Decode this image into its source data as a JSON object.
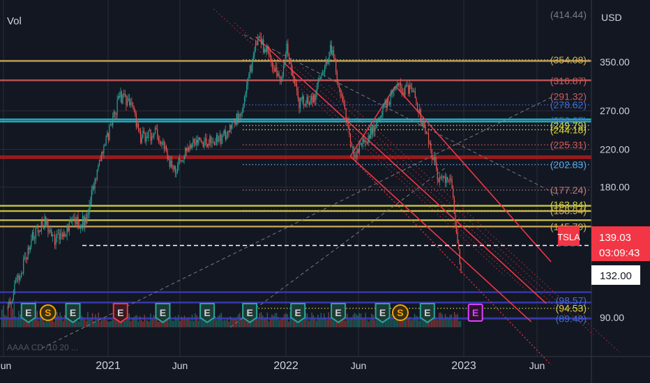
{
  "panel": {
    "vol_label": "Vol",
    "currency": "USD"
  },
  "chart_data": {
    "type": "candlestick",
    "symbol": "TSLA",
    "currency": "USD",
    "ylim": [
      75,
      425
    ],
    "y_scale": "log",
    "y_ticks": [
      {
        "value": 350,
        "label": "350.00"
      },
      {
        "value": 270,
        "label": "270.00"
      },
      {
        "value": 220,
        "label": "220.00"
      },
      {
        "value": 180,
        "label": "180.00"
      },
      {
        "value": 90,
        "label": "90.00"
      }
    ],
    "x_ticks": [
      "Jun",
      "2021",
      "Jun",
      "2022",
      "Jun",
      "2023",
      "Jun"
    ],
    "x_tick_dates": [
      "2020-06-01",
      "2021-01-01",
      "2021-06-01",
      "2022-01-01",
      "2022-06-01",
      "2023-01-01",
      "2023-06-01"
    ],
    "price_path": [
      {
        "date": "2020-06-10",
        "price": 95
      },
      {
        "date": "2020-07-01",
        "price": 110
      },
      {
        "date": "2020-08-01",
        "price": 140
      },
      {
        "date": "2020-08-25",
        "price": 150
      },
      {
        "date": "2020-09-10",
        "price": 135
      },
      {
        "date": "2020-10-01",
        "price": 140
      },
      {
        "date": "2020-10-20",
        "price": 148
      },
      {
        "date": "2020-11-15",
        "price": 150
      },
      {
        "date": "2020-12-15",
        "price": 205
      },
      {
        "date": "2021-01-25",
        "price": 290
      },
      {
        "date": "2021-02-15",
        "price": 285
      },
      {
        "date": "2021-03-10",
        "price": 235
      },
      {
        "date": "2021-04-15",
        "price": 240
      },
      {
        "date": "2021-05-20",
        "price": 195
      },
      {
        "date": "2021-06-25",
        "price": 230
      },
      {
        "date": "2021-08-20",
        "price": 230
      },
      {
        "date": "2021-10-01",
        "price": 265
      },
      {
        "date": "2021-11-04",
        "price": 395
      },
      {
        "date": "2021-11-25",
        "price": 370
      },
      {
        "date": "2021-12-20",
        "price": 310
      },
      {
        "date": "2022-01-03",
        "price": 375
      },
      {
        "date": "2022-01-27",
        "price": 280
      },
      {
        "date": "2022-03-01",
        "price": 290
      },
      {
        "date": "2022-04-04",
        "price": 380
      },
      {
        "date": "2022-05-24",
        "price": 210
      },
      {
        "date": "2022-06-25",
        "price": 240
      },
      {
        "date": "2022-08-15",
        "price": 305
      },
      {
        "date": "2022-09-20",
        "price": 300
      },
      {
        "date": "2022-10-25",
        "price": 220
      },
      {
        "date": "2022-11-10",
        "price": 190
      },
      {
        "date": "2022-12-05",
        "price": 185
      },
      {
        "date": "2022-12-27",
        "price": 115
      }
    ],
    "horizontal_levels": [
      {
        "label": "(414.44)",
        "value": 414.44,
        "color": "#787b86",
        "line": "none"
      },
      {
        "label": "(354.08)",
        "value": 354.08,
        "color": "#d1b054",
        "line": "dotted"
      },
      {
        "label": "(316.87)",
        "value": 316.87,
        "color": "#d05c5c",
        "line": "dotted"
      },
      {
        "label": "(291.32)",
        "value": 291.32,
        "color": "#d05c5c",
        "line": "none"
      },
      {
        "label": "(278.62)",
        "value": 278.62,
        "color": "#3d6fd8",
        "line": "dotted"
      },
      {
        "label": "(256.27)",
        "value": 256.27,
        "color": "#3d6fd8",
        "line": "none"
      },
      {
        "label": "(249.79)",
        "value": 249.79,
        "color": "#d5d341",
        "line": "dotted"
      },
      {
        "label": "(244.18)",
        "value": 244.18,
        "color": "#d5d341",
        "line": "dotted"
      },
      {
        "label": "(225.31)",
        "value": 225.31,
        "color": "#d05c5c",
        "line": "dotted"
      },
      {
        "label": "(202.83)",
        "value": 202.83,
        "color": "#5aa9e6",
        "line": "dotted"
      },
      {
        "label": "(177.24)",
        "value": 177.24,
        "color": "#c07a7a",
        "line": "dotted"
      },
      {
        "label": "(163.84)",
        "value": 163.84,
        "color": "#d5d341",
        "line": "none"
      },
      {
        "label": "(158.94)",
        "value": 158.94,
        "color": "#d1b054",
        "line": "dotted"
      },
      {
        "label": "(145.79)",
        "value": 145.79,
        "color": "#d1b054",
        "line": "dotted"
      },
      {
        "label": "(98.57)",
        "value": 98.57,
        "color": "#3d6fd8",
        "line": "none"
      },
      {
        "label": "(94.53)",
        "value": 94.53,
        "color": "#d5d341",
        "line": "dotted"
      },
      {
        "label": "(89.48)",
        "value": 89.48,
        "color": "#3d6fd8",
        "line": "none"
      }
    ],
    "solid_levels": [
      {
        "value": 352,
        "color": "#d1b054"
      },
      {
        "value": 317.5,
        "color": "#d05c5c"
      },
      {
        "value": 258,
        "color": "#26c6da"
      },
      {
        "value": 255,
        "color": "#26c6da"
      },
      {
        "value": 212,
        "color": "#b71c1c"
      },
      {
        "value": 210,
        "color": "#b71c1c"
      },
      {
        "value": 163,
        "color": "#d5d341"
      },
      {
        "value": 158.5,
        "color": "#d5d341"
      },
      {
        "value": 151,
        "color": "#d5d341"
      },
      {
        "value": 146,
        "color": "#d1b054"
      },
      {
        "value": 103,
        "color": "#3d3dbf"
      },
      {
        "value": 97.5,
        "color": "#3d3dbf"
      },
      {
        "value": 89.5,
        "color": "#3d3dbf"
      }
    ],
    "channel": {
      "color": "#f23645",
      "upper": [
        {
          "date": "2021-11-01",
          "price": 400
        },
        {
          "date": "2023-06-20",
          "price": 97
        }
      ],
      "lower": [
        {
          "date": "2022-05-15",
          "price": 212
        },
        {
          "date": "2023-05-20",
          "price": 88
        }
      ],
      "upper_box": [
        {
          "date": "2022-05-15",
          "price": 212
        },
        {
          "date": "2022-08-15",
          "price": 308
        },
        {
          "date": "2023-06-30",
          "price": 121
        }
      ],
      "outer_bottom": [
        {
          "date": "2022-05-15",
          "price": 212
        },
        {
          "date": "2023-06-30",
          "price": 70
        }
      ]
    },
    "current_price": {
      "symbol": "TSLA",
      "price": "139.03",
      "countdown": "03:09:43",
      "color": "#f23645"
    },
    "crosshair_price": {
      "value": 132,
      "label": "132.00"
    },
    "event_markers": [
      {
        "date": "2020-07-22",
        "type": "E"
      },
      {
        "date": "2020-08-31",
        "type": "S"
      },
      {
        "date": "2020-10-21",
        "type": "E"
      },
      {
        "date": "2021-01-27",
        "type": "E"
      },
      {
        "date": "2021-04-26",
        "type": "E"
      },
      {
        "date": "2021-07-26",
        "type": "E"
      },
      {
        "date": "2021-10-20",
        "type": "E"
      },
      {
        "date": "2022-01-26",
        "type": "E"
      },
      {
        "date": "2022-04-20",
        "type": "E"
      },
      {
        "date": "2022-07-20",
        "type": "E"
      },
      {
        "date": "2022-08-25",
        "type": "S"
      },
      {
        "date": "2022-10-19",
        "type": "E"
      },
      {
        "date": "2023-01-25",
        "type": "E"
      }
    ],
    "partial_text_bottom_left": "AAAA CD /10 20 ..."
  }
}
